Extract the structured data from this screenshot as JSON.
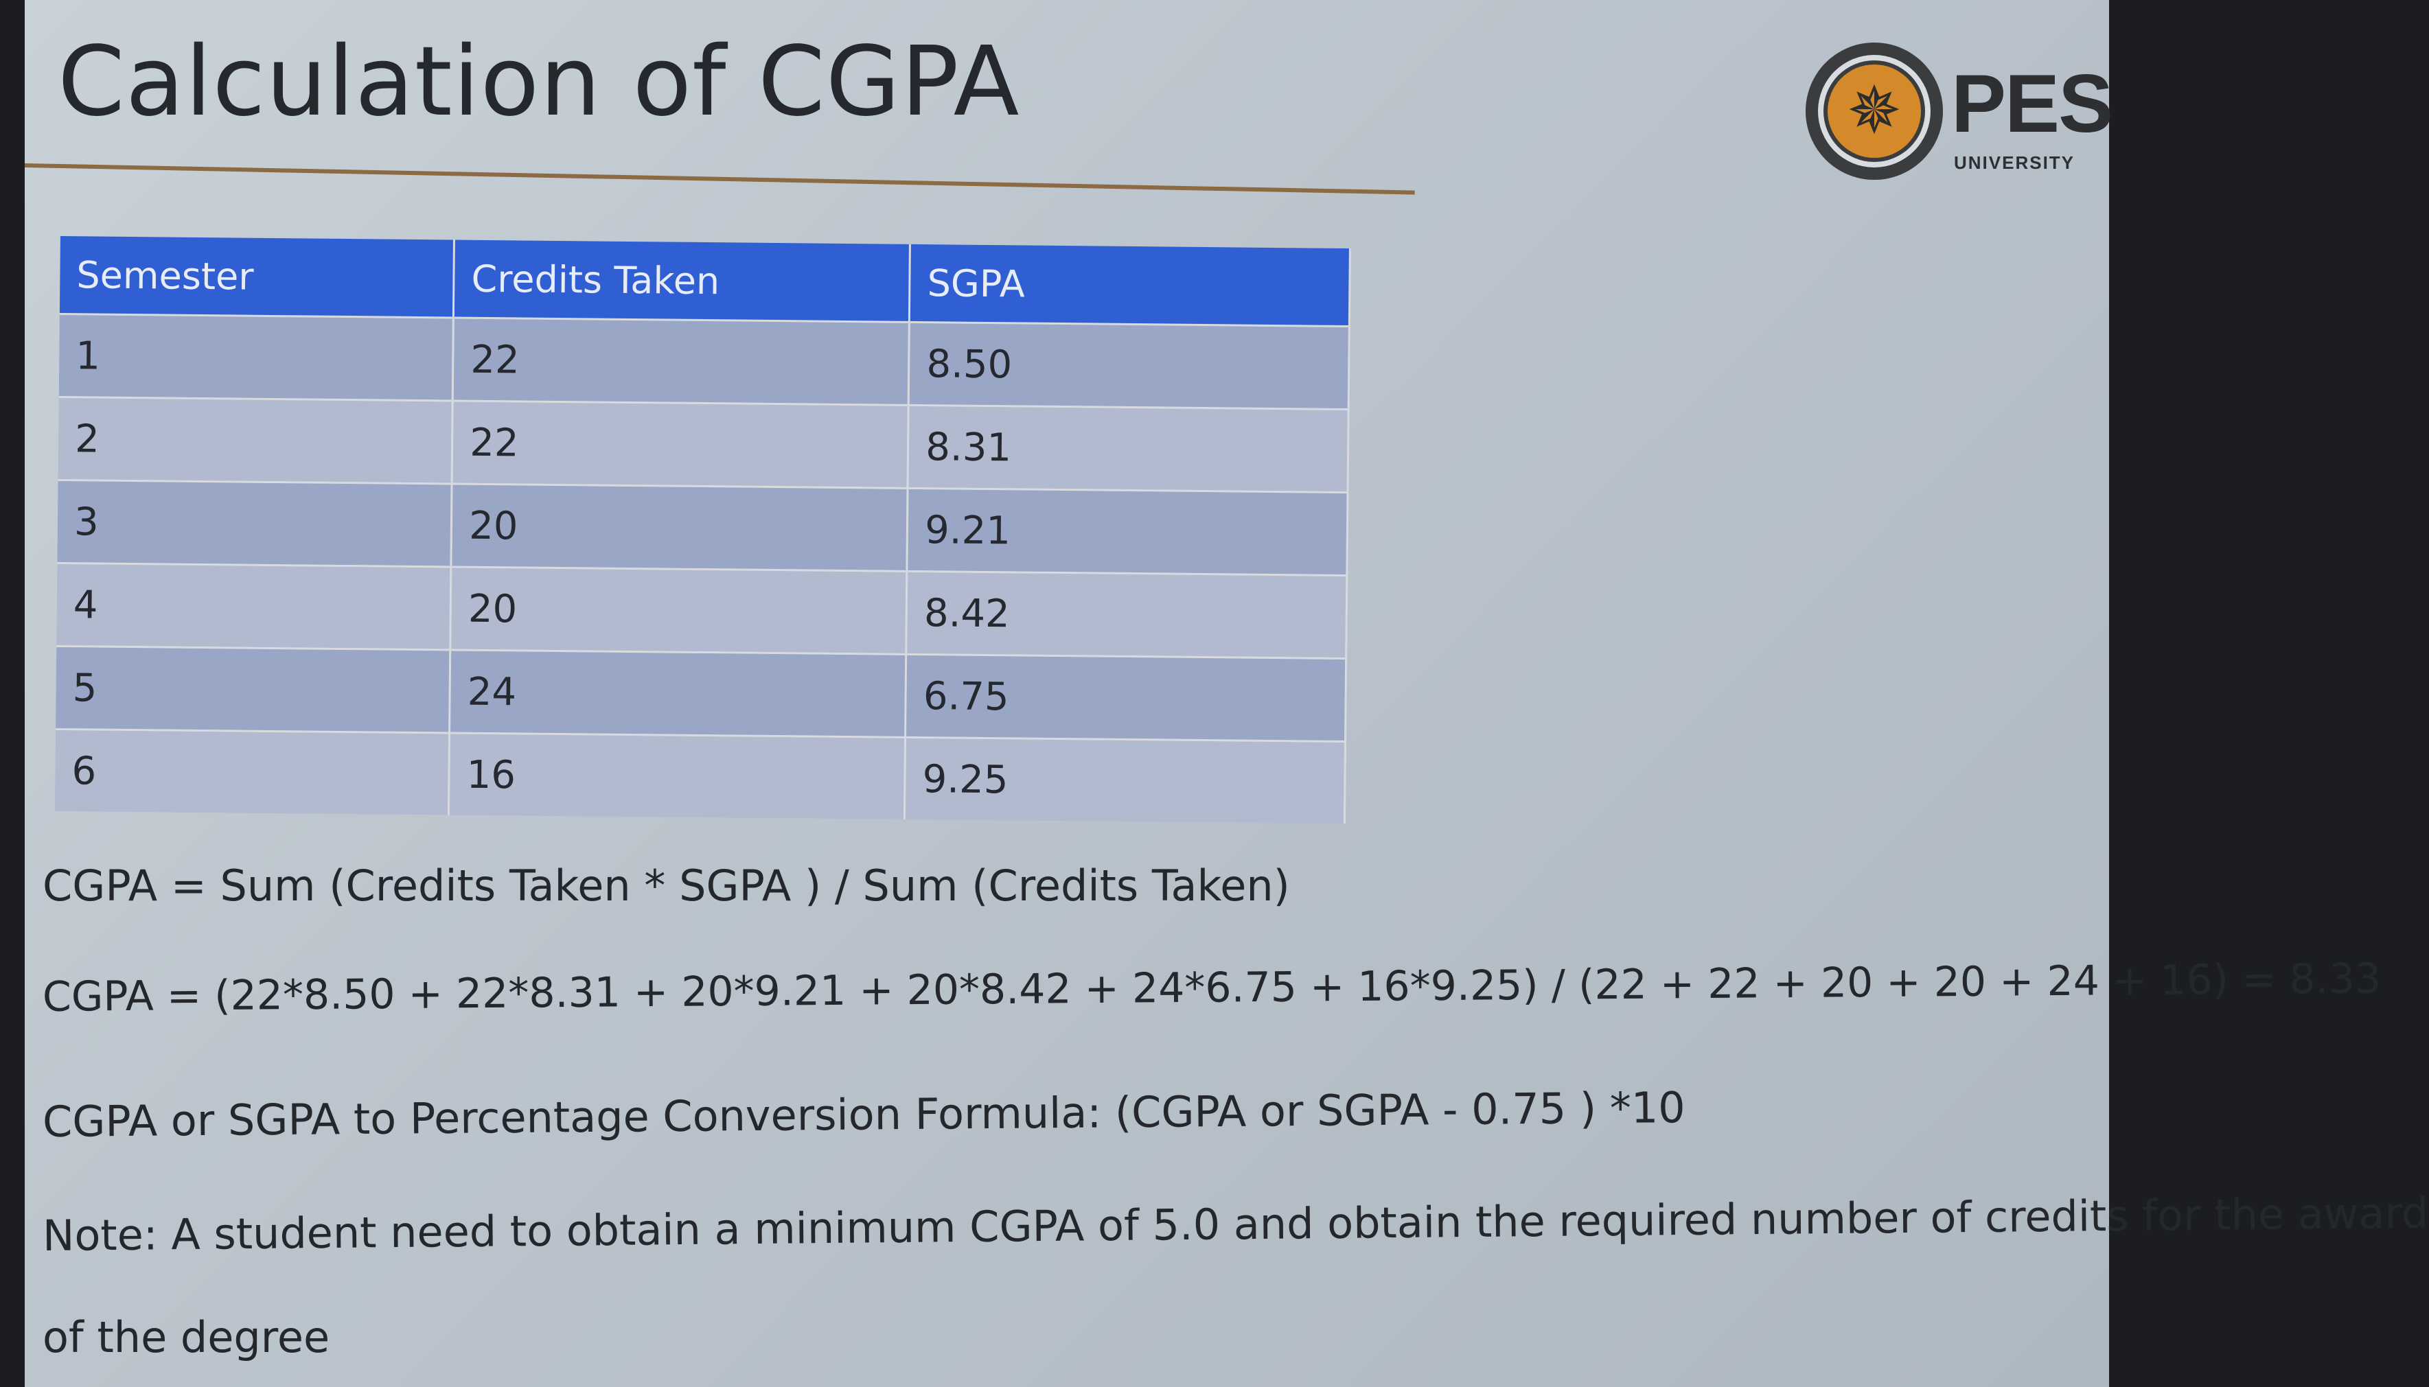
{
  "title": "Calculation of CGPA",
  "logo": {
    "name": "PES",
    "subtitle": "UNIVERSITY",
    "icon": "compass-icon"
  },
  "table": {
    "headers": [
      "Semester",
      "Credits Taken",
      "SGPA"
    ],
    "rows": [
      [
        "1",
        "22",
        "8.50"
      ],
      [
        "2",
        "22",
        "8.31"
      ],
      [
        "3",
        "20",
        "9.21"
      ],
      [
        "4",
        "20",
        "8.42"
      ],
      [
        "5",
        "24",
        "6.75"
      ],
      [
        "6",
        "16",
        "9.25"
      ]
    ]
  },
  "formula": "CGPA =  Sum (Credits Taken * SGPA ) / Sum (Credits Taken)",
  "calculation": "CGPA = (22*8.50 + 22*8.31 + 20*9.21 + 20*8.42 + 24*6.75 + 16*9.25) / (22 + 22 + 20 + 20 + 24 + 16) = 8.33",
  "conversion": "CGPA or SGPA to Percentage Conversion Formula: (CGPA or SGPA - 0.75 ) *10",
  "note_line1": "Note: A student need to obtain a minimum CGPA of 5.0 and obtain the required number of credits for the award",
  "note_line2": "of the degree",
  "colors": {
    "header_blue": "#2f5fd2",
    "row_odd": "#9aa6c6",
    "row_even": "#b1bacf",
    "rule": "#8b6a44",
    "logo_orange": "#d48a2a"
  }
}
